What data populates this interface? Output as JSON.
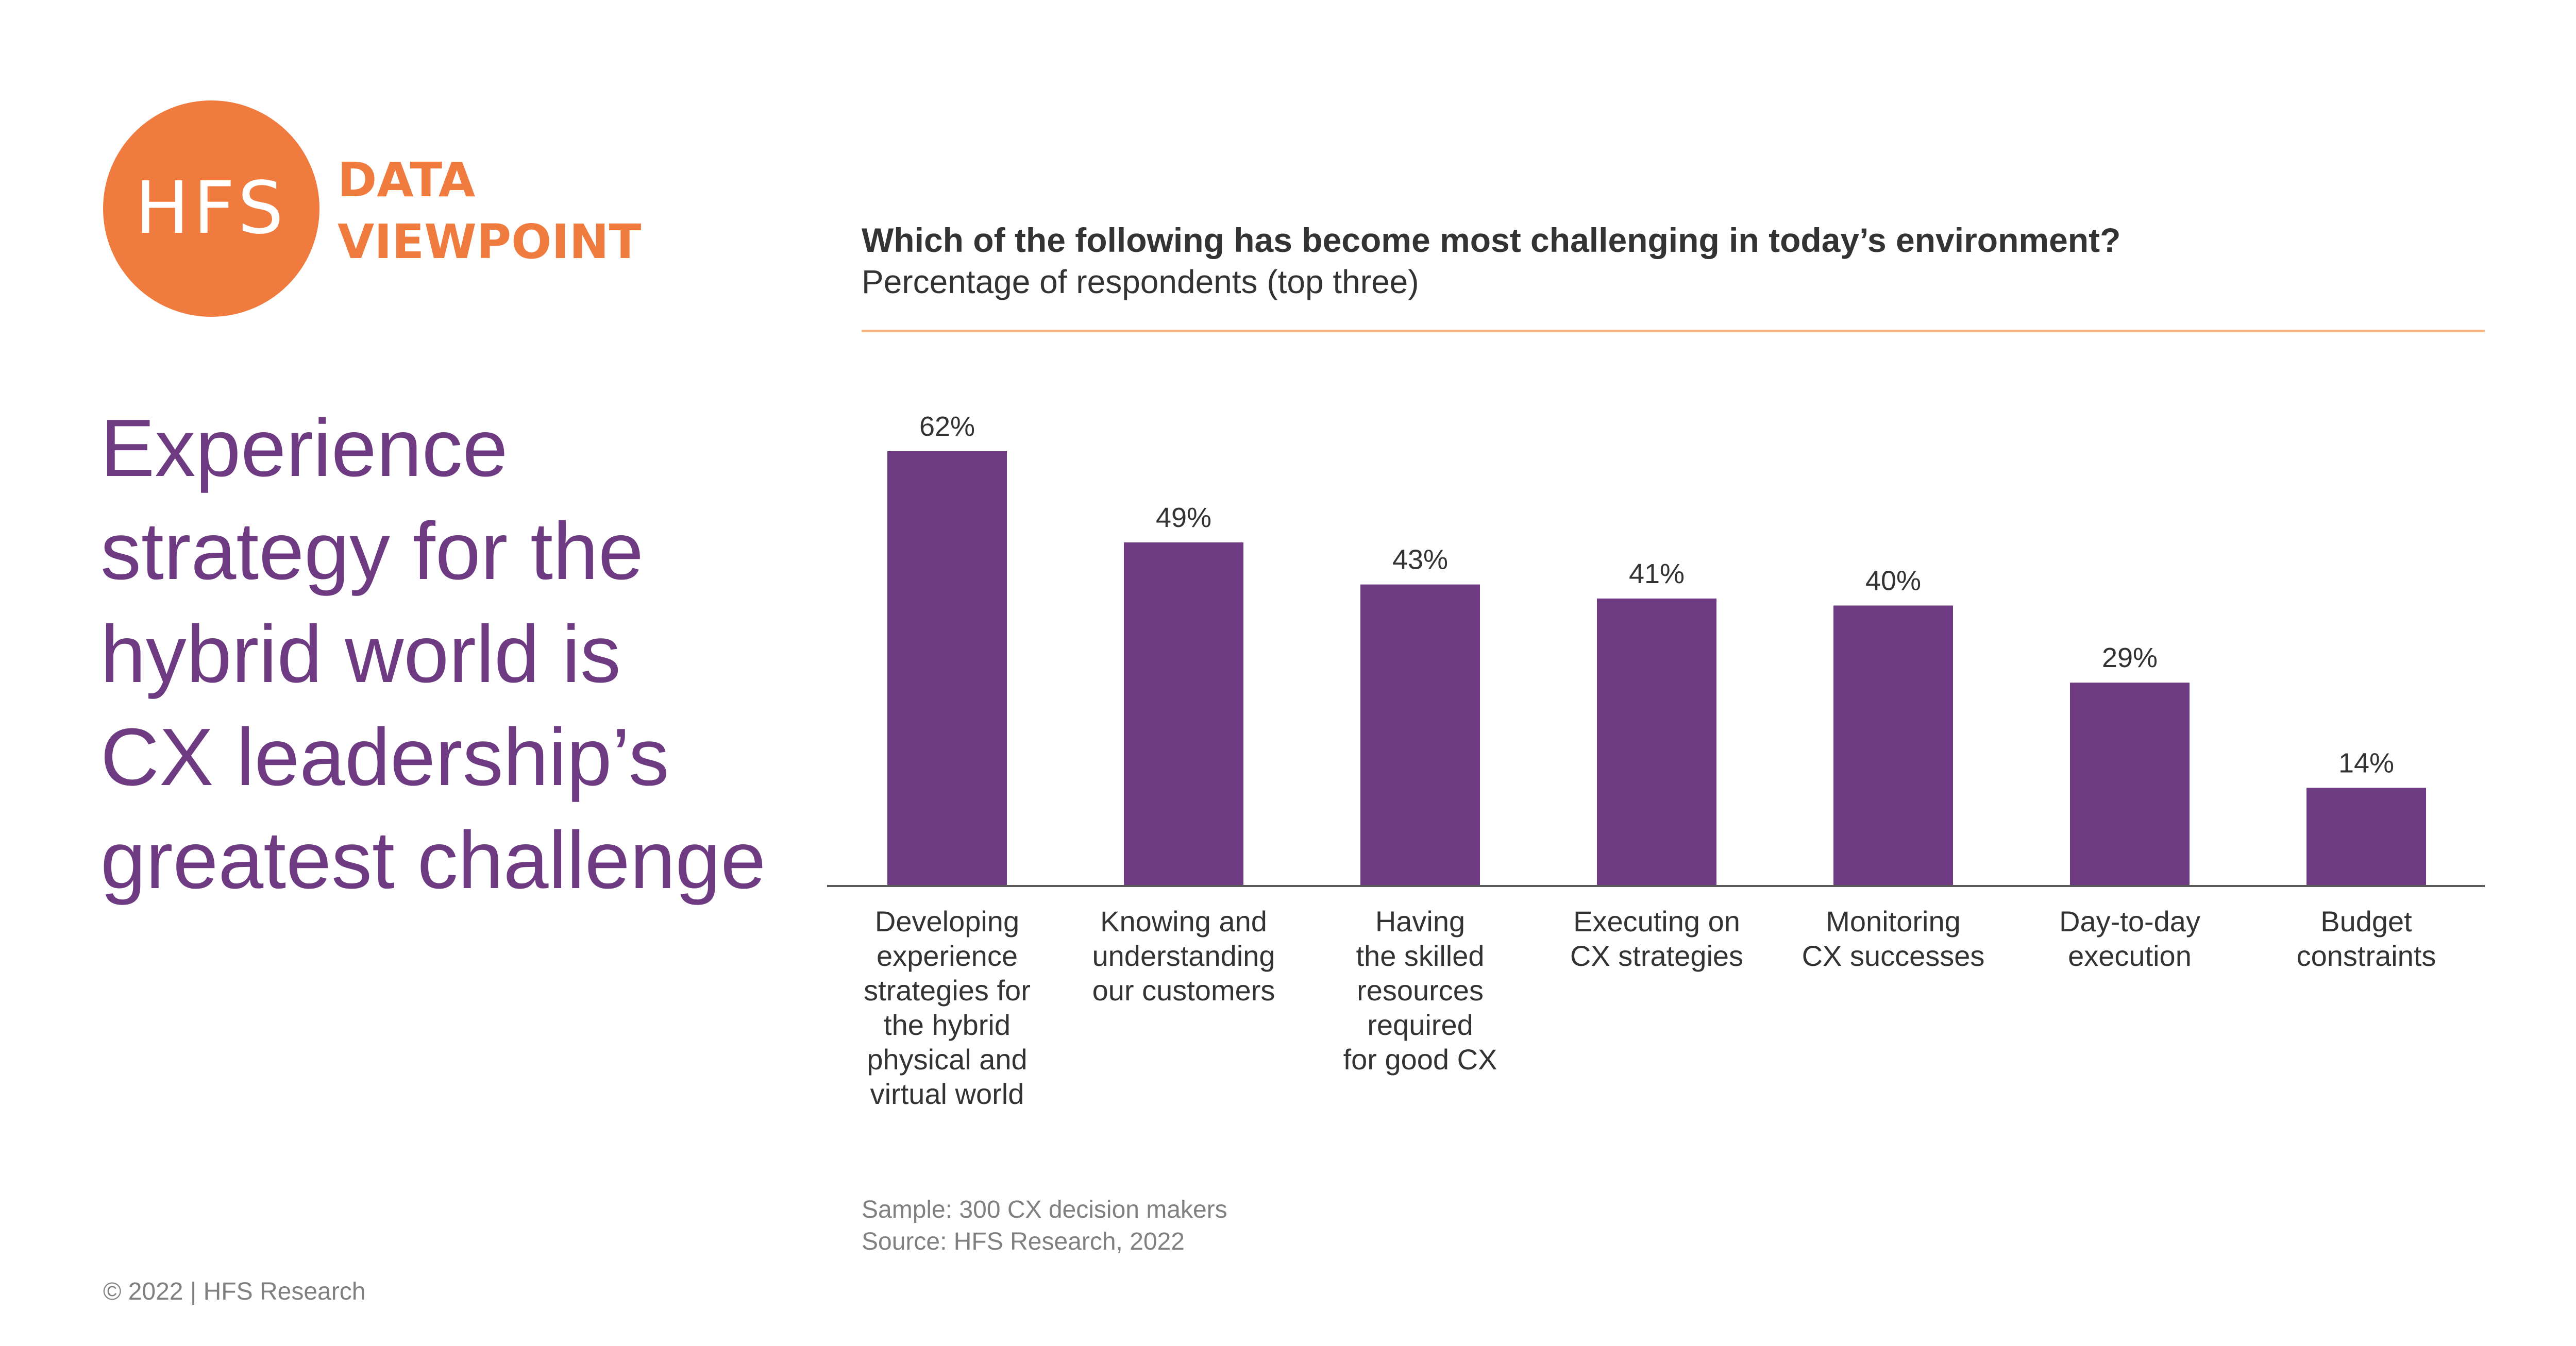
{
  "brand": {
    "logo_text": "HFS",
    "tag_line1": "DATA",
    "tag_line2": "VIEWPOINT",
    "accent_color": "#F07B3F",
    "logo-icon": "hfs-circle-logo"
  },
  "headline": {
    "lines": [
      "Experience",
      "strategy for the",
      "hybrid world is",
      "CX leadership’s",
      "greatest challenge"
    ],
    "color": "#6E3A82"
  },
  "footnote": {
    "sample": "Sample: 300 CX decision makers",
    "source": "Source: HFS Research, 2022"
  },
  "copyright": "© 2022 | HFS Research",
  "chart_data": {
    "type": "bar",
    "title": "Which of the following has become most challenging in today’s environment?",
    "subtitle": "Percentage of respondents (top three)",
    "categories": [
      [
        "Developing",
        "experience",
        "strategies for",
        "the hybrid",
        "physical and",
        "virtual world"
      ],
      [
        "Knowing and",
        "understanding",
        "our customers"
      ],
      [
        "Having",
        "the skilled",
        "resources",
        "required",
        "for good CX"
      ],
      [
        "Executing on",
        "CX strategies"
      ],
      [
        "Monitoring",
        "CX successes"
      ],
      [
        "Day-to-day",
        "execution"
      ],
      [
        "Budget",
        "constraints"
      ]
    ],
    "values": [
      62,
      49,
      43,
      41,
      40,
      29,
      14
    ],
    "value_labels": [
      "62%",
      "49%",
      "43%",
      "41%",
      "40%",
      "29%",
      "14%"
    ],
    "unit": "%",
    "ylim": [
      0,
      62
    ],
    "bar_color": "#6E3A82",
    "grid": false,
    "legend": "none"
  }
}
